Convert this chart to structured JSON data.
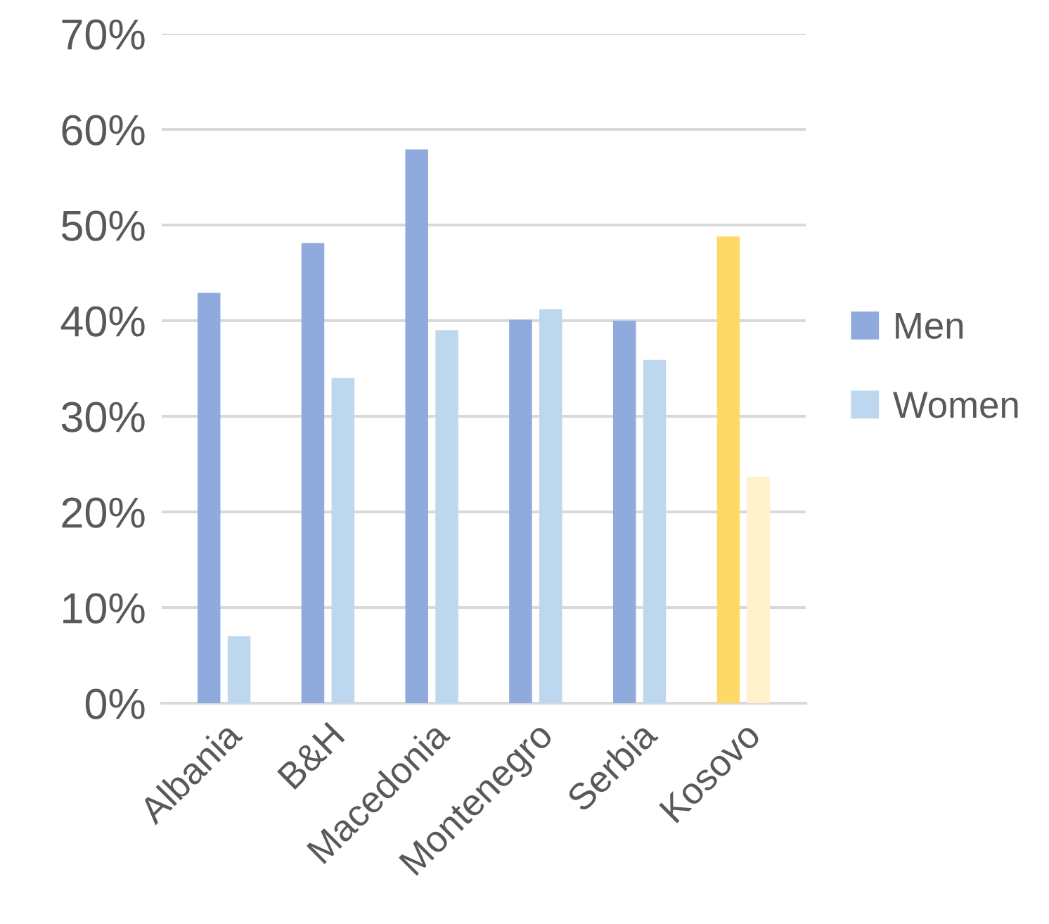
{
  "chart_data": {
    "type": "bar",
    "categories": [
      "Albania",
      "B&H",
      "Macedonia",
      "Montenegro",
      "Serbia",
      "Kosovo"
    ],
    "series": [
      {
        "name": "Men",
        "color": "#8faadc",
        "colors": [
          "#8faadc",
          "#8faadc",
          "#8faadc",
          "#8faadc",
          "#8faadc",
          "#ffd966"
        ],
        "values": [
          42.9,
          48.1,
          57.9,
          40.1,
          40.0,
          48.8
        ]
      },
      {
        "name": "Women",
        "color": "#bdd7ee",
        "colors": [
          "#bdd7ee",
          "#bdd7ee",
          "#bdd7ee",
          "#bdd7ee",
          "#bdd7ee",
          "#fff2cc"
        ],
        "values": [
          7.0,
          34.0,
          39.0,
          41.2,
          35.9,
          23.7
        ]
      }
    ],
    "ylim": [
      0,
      70
    ],
    "yticks": [
      {
        "value": 0,
        "label": "0%"
      },
      {
        "value": 10,
        "label": "10%"
      },
      {
        "value": 20,
        "label": "20%"
      },
      {
        "value": 30,
        "label": "30%"
      },
      {
        "value": 40,
        "label": "40%"
      },
      {
        "value": 50,
        "label": "50%"
      },
      {
        "value": 60,
        "label": "60%"
      },
      {
        "value": 70,
        "label": "70%"
      }
    ],
    "grid": "y",
    "legend": "right"
  }
}
